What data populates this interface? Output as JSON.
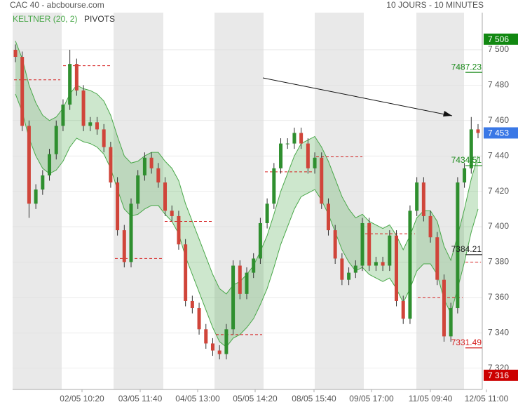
{
  "chart_data": {
    "type": "candlestick",
    "title": "CAC 40 - abcbourse.com",
    "subtitle": "10 JOURS - 10 MINUTES",
    "x_labels": [
      "02/05 10:20",
      "03/05 11:40",
      "04/05 13:00",
      "05/05 14:20",
      "08/05 15:40",
      "09/05 17:00",
      "11/05 09:40",
      "12/05 11:00"
    ],
    "open": [
      7500,
      7496,
      7457,
      7413,
      7421,
      7429,
      7441,
      7457,
      7469,
      7492,
      7477,
      7457,
      7459,
      7455,
      7445,
      7425,
      7398,
      7380,
      7413,
      7429,
      7439,
      7433,
      7425,
      7409,
      7406,
      7390,
      7358,
      7354,
      7342,
      7334,
      7330,
      7328,
      7342,
      7378,
      7362,
      7374,
      7382,
      7402,
      7413,
      7433,
      7447,
      7447,
      7453,
      7447,
      7433,
      7439,
      7413,
      7398,
      7382,
      7370,
      7374,
      7378,
      7402,
      7378,
      7380,
      7378,
      7395,
      7358,
      7348,
      7409,
      7425,
      7406,
      7394,
      7370,
      7338,
      7354,
      7425,
      7433,
      7455
    ],
    "high": [
      7503,
      7499,
      7460,
      7424,
      7432,
      7444,
      7460,
      7472,
      7500,
      7495,
      7480,
      7462,
      7462,
      7458,
      7448,
      7428,
      7401,
      7416,
      7432,
      7442,
      7442,
      7436,
      7428,
      7412,
      7409,
      7393,
      7361,
      7357,
      7345,
      7337,
      7333,
      7345,
      7381,
      7381,
      7377,
      7385,
      7405,
      7416,
      7436,
      7450,
      7450,
      7456,
      7456,
      7450,
      7442,
      7442,
      7416,
      7401,
      7385,
      7377,
      7381,
      7405,
      7405,
      7383,
      7383,
      7398,
      7398,
      7361,
      7412,
      7428,
      7428,
      7409,
      7397,
      7373,
      7357,
      7428,
      7436,
      7462,
      7458
    ],
    "low": [
      7493,
      7454,
      7405,
      7410,
      7418,
      7426,
      7438,
      7454,
      7466,
      7474,
      7454,
      7454,
      7452,
      7442,
      7422,
      7395,
      7377,
      7377,
      7410,
      7426,
      7430,
      7422,
      7406,
      7403,
      7387,
      7355,
      7351,
      7339,
      7331,
      7327,
      7325,
      7325,
      7339,
      7359,
      7359,
      7371,
      7379,
      7399,
      7410,
      7430,
      7444,
      7444,
      7444,
      7430,
      7430,
      7410,
      7395,
      7379,
      7367,
      7367,
      7371,
      7375,
      7375,
      7375,
      7375,
      7375,
      7355,
      7345,
      7345,
      7406,
      7403,
      7391,
      7367,
      7335,
      7335,
      7351,
      7422,
      7430,
      7450
    ],
    "close": [
      7496,
      7457,
      7413,
      7421,
      7429,
      7441,
      7457,
      7469,
      7492,
      7477,
      7457,
      7459,
      7455,
      7445,
      7425,
      7398,
      7380,
      7413,
      7429,
      7439,
      7433,
      7425,
      7409,
      7406,
      7390,
      7358,
      7354,
      7342,
      7334,
      7330,
      7328,
      7342,
      7378,
      7362,
      7374,
      7382,
      7402,
      7413,
      7433,
      7447,
      7447,
      7453,
      7447,
      7433,
      7439,
      7413,
      7398,
      7382,
      7370,
      7374,
      7378,
      7402,
      7378,
      7380,
      7378,
      7395,
      7358,
      7348,
      7409,
      7425,
      7406,
      7394,
      7370,
      7338,
      7354,
      7425,
      7433,
      7455,
      7453
    ],
    "up_color": "#2f8f2f",
    "down_color": "#d0453a",
    "keltner": {
      "name": "KELTNER (20, 2)",
      "color": "#4aa84a",
      "upper": [
        7505,
        7495,
        7480,
        7470,
        7463,
        7460,
        7462,
        7467,
        7475,
        7480,
        7478,
        7477,
        7475,
        7471,
        7463,
        7451,
        7440,
        7436,
        7437,
        7440,
        7442,
        7442,
        7437,
        7433,
        7426,
        7413,
        7403,
        7393,
        7383,
        7373,
        7365,
        7362,
        7367,
        7369,
        7373,
        7378,
        7386,
        7395,
        7407,
        7420,
        7430,
        7440,
        7447,
        7449,
        7451,
        7445,
        7437,
        7427,
        7417,
        7410,
        7405,
        7407,
        7403,
        7401,
        7399,
        7401,
        7395,
        7387,
        7395,
        7405,
        7409,
        7409,
        7403,
        7389,
        7381,
        7395,
        7410,
        7427,
        7440
      ],
      "lower": [
        7475,
        7465,
        7450,
        7440,
        7433,
        7430,
        7432,
        7437,
        7445,
        7450,
        7448,
        7447,
        7445,
        7441,
        7433,
        7421,
        7410,
        7406,
        7407,
        7410,
        7412,
        7412,
        7407,
        7403,
        7396,
        7383,
        7373,
        7363,
        7353,
        7343,
        7335,
        7332,
        7337,
        7339,
        7343,
        7348,
        7356,
        7365,
        7377,
        7390,
        7400,
        7410,
        7417,
        7419,
        7421,
        7415,
        7407,
        7397,
        7387,
        7380,
        7375,
        7377,
        7373,
        7371,
        7369,
        7371,
        7365,
        7357,
        7365,
        7375,
        7379,
        7379,
        7373,
        7359,
        7351,
        7365,
        7380,
        7397,
        7410
      ]
    },
    "pivots": {
      "name": "PIVOTS",
      "color": "#d62020",
      "values": [
        7483,
        7491,
        7382,
        7403,
        7339,
        7431,
        7439.5,
        7396,
        7360,
        7380
      ]
    },
    "levels": [
      {
        "value": 7487.23,
        "color": "#1a8a1a"
      },
      {
        "value": 7434.51,
        "color": "#1a8a1a"
      },
      {
        "value": 7384.21,
        "color": "#222222"
      },
      {
        "value": 7331.49,
        "color": "#d62020"
      }
    ],
    "price_tags": [
      {
        "value": 7506,
        "label": "7 506",
        "color": "#118811"
      },
      {
        "value": 7453,
        "label": "7 453",
        "color": "#3a78e6"
      },
      {
        "value": 7316,
        "label": "7 316",
        "color": "#cc0000"
      }
    ],
    "ylim": [
      7308,
      7521
    ],
    "yticks": [
      {
        "value": 7320,
        "label": "7 320"
      },
      {
        "value": 7340,
        "label": "7 340"
      },
      {
        "value": 7360,
        "label": "7 360"
      },
      {
        "value": 7380,
        "label": "7 380"
      },
      {
        "value": 7400,
        "label": "7 400"
      },
      {
        "value": 7420,
        "label": "7 420"
      },
      {
        "value": 7440,
        "label": "7 440"
      },
      {
        "value": 7460,
        "label": "7 460"
      },
      {
        "value": 7480,
        "label": "7 480"
      },
      {
        "value": 7500,
        "label": "7 500"
      }
    ],
    "grid": true
  }
}
